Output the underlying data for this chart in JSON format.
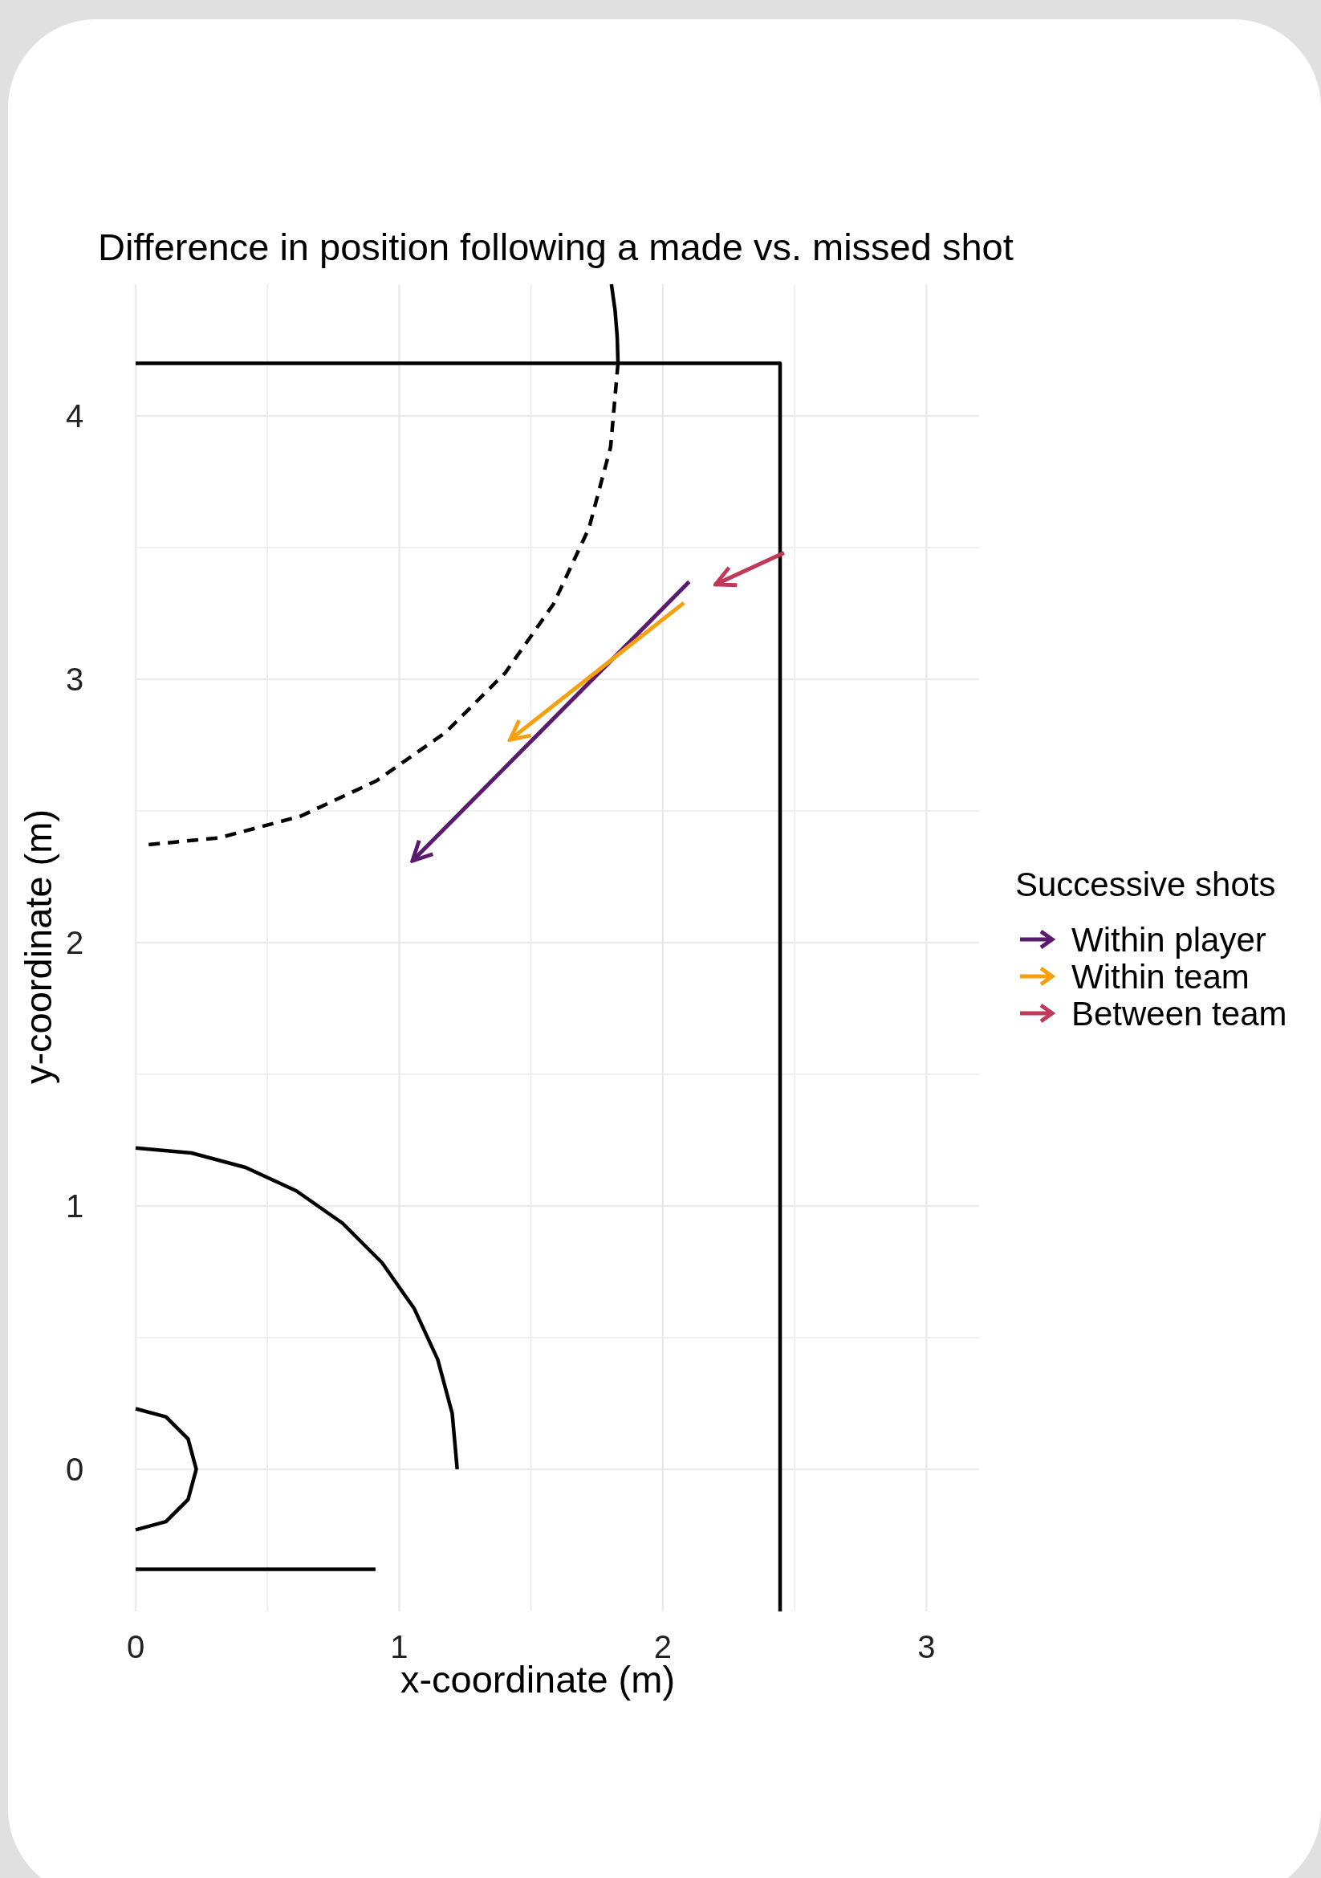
{
  "chart_data": {
    "type": "line",
    "title": "Difference in position following a made vs. missed shot",
    "xlabel": "x-coordinate (m)",
    "ylabel": "y-coordinate (m)",
    "legend_title": "Successive shots",
    "legend": "right",
    "grid": true,
    "xlim": [
      0,
      3.2
    ],
    "ylim": [
      -0.54,
      4.5
    ],
    "xticks": [
      0,
      {
        "value": 0.5,
        "label": null
      },
      1,
      {
        "value": 1.5,
        "label": null
      },
      2,
      {
        "value": 2.5,
        "label": null
      },
      3
    ],
    "yticks": [
      0,
      {
        "value": 0.5,
        "label": null
      },
      1,
      {
        "value": 1.5,
        "label": null
      },
      2,
      {
        "value": 2.5,
        "label": null
      },
      3,
      {
        "value": 3.5,
        "label": null
      },
      4
    ],
    "series": [
      {
        "color": "#000000",
        "x": [
          0,
          2.445,
          2.445
        ],
        "values": [
          4.2,
          4.2,
          -0.54
        ]
      },
      {
        "color": "#000000",
        "x": [
          0,
          0.91
        ],
        "values": [
          -0.38,
          -0.38
        ]
      },
      {
        "color": "#000000",
        "x": [
          0,
          0.115,
          0.199,
          0.23,
          0.199,
          0.115,
          0
        ],
        "values": [
          0.23,
          0.199,
          0.115,
          0,
          -0.115,
          -0.199,
          -0.23
        ]
      },
      {
        "color": "#000000",
        "x": [
          1.22,
          1.201,
          1.146,
          1.057,
          0.935,
          0.784,
          0.61,
          0.417,
          0.212,
          0
        ],
        "values": [
          0,
          0.212,
          0.417,
          0.61,
          0.784,
          0.935,
          1.057,
          1.146,
          1.201,
          1.22
        ]
      },
      {
        "color": "#000000",
        "x": [
          1.805,
          1.819,
          1.827,
          1.83
        ],
        "values": [
          4.5,
          4.4,
          4.3,
          4.2
        ]
      },
      {
        "color": "#000000",
        "line_style": "dashed",
        "x": [
          1.83,
          1.802,
          1.72,
          1.585,
          1.402,
          1.176,
          0.915,
          0.626,
          0.318,
          0.03
        ],
        "values": [
          4.2,
          3.882,
          3.574,
          3.285,
          3.024,
          2.798,
          2.615,
          2.48,
          2.398,
          2.37
        ]
      },
      {
        "name": "Within player",
        "color": "#5a1a6e",
        "x": [
          2.1,
          1.05
        ],
        "values": [
          3.37,
          2.31
        ]
      },
      {
        "name": "Within team",
        "color": "#f5a00f",
        "x": [
          2.08,
          1.42
        ],
        "values": [
          3.29,
          2.77
        ]
      },
      {
        "name": "Between team",
        "color": "#c0395a",
        "x": [
          2.46,
          2.2
        ],
        "values": [
          3.48,
          3.36
        ]
      }
    ]
  }
}
